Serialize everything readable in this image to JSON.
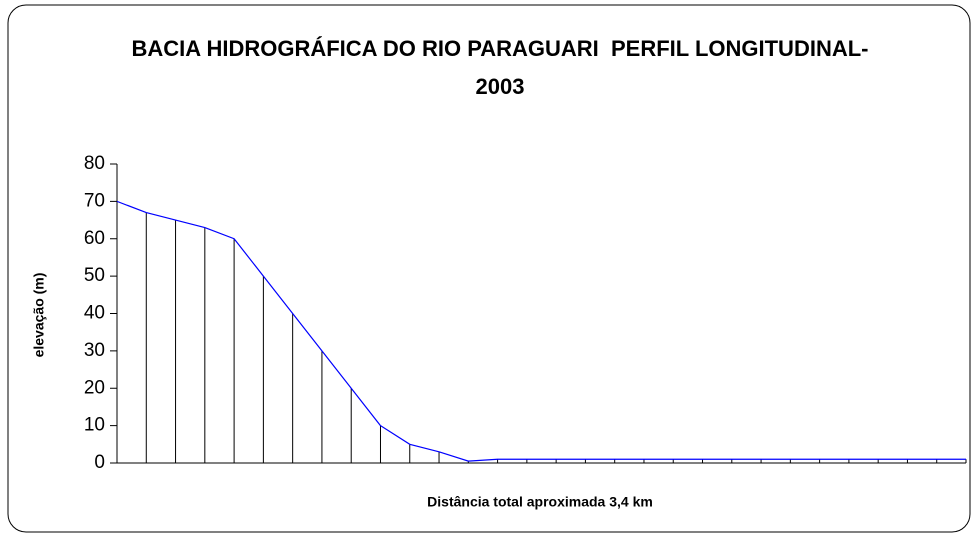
{
  "chart_data": {
    "type": "line",
    "title": "BACIA HIDROGRÁFICA DO RIO PARAGUARI  PERFIL LONGITUDINAL- 2003",
    "x_label": "Distância total aproximada 3,4 km",
    "y_label": "elevação (m)",
    "categories": [
      null,
      null,
      null,
      null,
      null,
      null,
      null,
      null,
      null,
      null,
      null,
      null,
      null,
      null,
      null,
      null,
      null,
      null,
      null,
      null,
      null,
      null,
      null,
      null,
      null,
      null,
      null,
      null,
      null,
      null
    ],
    "series": [
      {
        "name": "elevação",
        "color": "#0000ff",
        "values": [
          70,
          67,
          65,
          63,
          60,
          50,
          40,
          30,
          20,
          10,
          5,
          3,
          0.5,
          1,
          1,
          1,
          1,
          1,
          1,
          1,
          1,
          1,
          1,
          1,
          1,
          1,
          1,
          1,
          1,
          1
        ]
      }
    ],
    "ylim": [
      0,
      80
    ],
    "yticks": [
      0,
      10,
      20,
      30,
      40,
      50,
      60,
      70,
      80
    ],
    "drop_lines": true
  }
}
